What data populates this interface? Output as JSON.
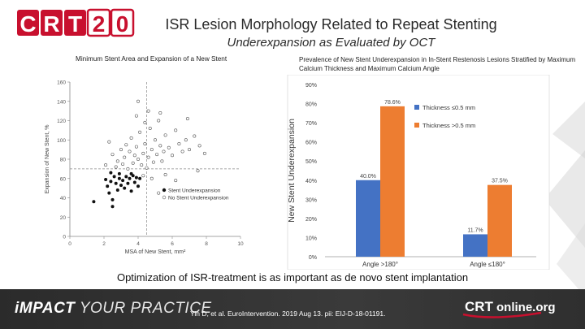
{
  "header": {
    "logo_text": "CRT20",
    "title": "ISR Lesion Morphology Related to Repeat Stenting",
    "subtitle": "Underexpansion as Evaluated by OCT"
  },
  "colors": {
    "brand_red": "#c8102e",
    "bar_blue": "#4472c4",
    "bar_orange": "#ed7d31",
    "footer_bg": "#2f2f2f"
  },
  "chart_data": [
    {
      "type": "scatter",
      "title": "Minimum Stent Area and Expansion of a New Stent",
      "xlabel": "MSA of New Stent, mm²",
      "ylabel": "Expansion of New Stent, %",
      "xlim": [
        0,
        10
      ],
      "ylim": [
        0,
        160
      ],
      "xticks": [
        "0",
        "2",
        "4",
        "6",
        "8",
        "10"
      ],
      "yticks": [
        "0",
        "20",
        "40",
        "60",
        "80",
        "100",
        "120",
        "140",
        "160"
      ],
      "reference_lines": {
        "x": 4.5,
        "y": 70
      },
      "legend": [
        "Stent Underexpansion",
        "No Stent Underexpansion"
      ],
      "legend_position": "bottom-right",
      "series": [
        {
          "name": "Stent Underexpansion",
          "marker": "filled",
          "points": [
            [
              1.4,
              36
            ],
            [
              2.1,
              59
            ],
            [
              2.2,
              52
            ],
            [
              2.3,
              45
            ],
            [
              2.4,
              57
            ],
            [
              2.5,
              38
            ],
            [
              2.6,
              62
            ],
            [
              2.7,
              55
            ],
            [
              2.8,
              48
            ],
            [
              2.9,
              60
            ],
            [
              3.0,
              53
            ],
            [
              3.1,
              58
            ],
            [
              3.2,
              50
            ],
            [
              3.3,
              62
            ],
            [
              3.4,
              55
            ],
            [
              3.5,
              60
            ],
            [
              3.6,
              47
            ],
            [
              3.7,
              63
            ],
            [
              3.8,
              56
            ],
            [
              3.9,
              61
            ],
            [
              4.0,
              52
            ],
            [
              2.4,
              66
            ],
            [
              2.9,
              65
            ],
            [
              3.6,
              65
            ],
            [
              2.5,
              31
            ],
            [
              4.1,
              60
            ]
          ]
        },
        {
          "name": "No Stent Underexpansion",
          "marker": "open",
          "points": [
            [
              2.1,
              74
            ],
            [
              2.3,
              98
            ],
            [
              2.5,
              85
            ],
            [
              2.7,
              72
            ],
            [
              2.8,
              78
            ],
            [
              3.0,
              90
            ],
            [
              3.1,
              75
            ],
            [
              3.2,
              82
            ],
            [
              3.3,
              95
            ],
            [
              3.4,
              70
            ],
            [
              3.5,
              88
            ],
            [
              3.6,
              102
            ],
            [
              3.7,
              76
            ],
            [
              3.8,
              84
            ],
            [
              3.9,
              93
            ],
            [
              4.0,
              80
            ],
            [
              4.1,
              108
            ],
            [
              4.2,
              74
            ],
            [
              4.3,
              86
            ],
            [
              4.4,
              96
            ],
            [
              4.5,
              71
            ],
            [
              4.6,
              82
            ],
            [
              4.7,
              112
            ],
            [
              4.8,
              90
            ],
            [
              4.9,
              77
            ],
            [
              5.0,
              100
            ],
            [
              5.1,
              85
            ],
            [
              5.2,
              120
            ],
            [
              5.3,
              94
            ],
            [
              5.4,
              78
            ],
            [
              5.5,
              88
            ],
            [
              5.6,
              105
            ],
            [
              5.8,
              92
            ],
            [
              6.0,
              84
            ],
            [
              6.2,
              110
            ],
            [
              6.4,
              96
            ],
            [
              6.6,
              88
            ],
            [
              6.8,
              100
            ],
            [
              7.0,
              90
            ],
            [
              7.3,
              104
            ],
            [
              7.6,
              94
            ],
            [
              7.9,
              86
            ],
            [
              4.0,
              140
            ],
            [
              4.6,
              130
            ],
            [
              5.3,
              128
            ],
            [
              4.3,
              63
            ],
            [
              4.8,
              60
            ],
            [
              5.6,
              64
            ],
            [
              6.2,
              58
            ],
            [
              5.2,
              45
            ],
            [
              7.5,
              68
            ],
            [
              3.9,
              125
            ],
            [
              4.4,
              118
            ],
            [
              6.9,
              122
            ]
          ]
        }
      ]
    },
    {
      "type": "bar",
      "title": "Prevalence of New Stent Underexpansion in In-Stent Restenosis Lesions Stratified by Maximum Calcium Thickness and Maximum Calcium Angle",
      "ylabel": "New Stent Underexpansion",
      "ylim": [
        0,
        90
      ],
      "yticks": [
        "0%",
        "10%",
        "20%",
        "30%",
        "40%",
        "50%",
        "60%",
        "70%",
        "80%",
        "90%"
      ],
      "categories": [
        "Angle >180°",
        "Angle ≤180°"
      ],
      "legend_position": "top-right",
      "series": [
        {
          "name": "Thickness ≤0.5 mm",
          "values": [
            40.0,
            11.7
          ],
          "labels": [
            "40.0%",
            "11.7%"
          ]
        },
        {
          "name": "Thickness >0.5 mm",
          "values": [
            78.6,
            37.5
          ],
          "labels": [
            "78.6%",
            "37.5%"
          ]
        }
      ]
    }
  ],
  "conclusion": "Optimization of ISR-treatment is as important as de novo stent implantation",
  "footer": {
    "tagline_bold": "iMPACT",
    "tagline_rest": " YOUR PRACTICE",
    "citation": "Yin D, et al. EuroIntervention. 2019 Aug 13. pii: EIJ-D-18-01191.",
    "logo_crt": "CRT",
    "logo_rest": "online.org"
  }
}
